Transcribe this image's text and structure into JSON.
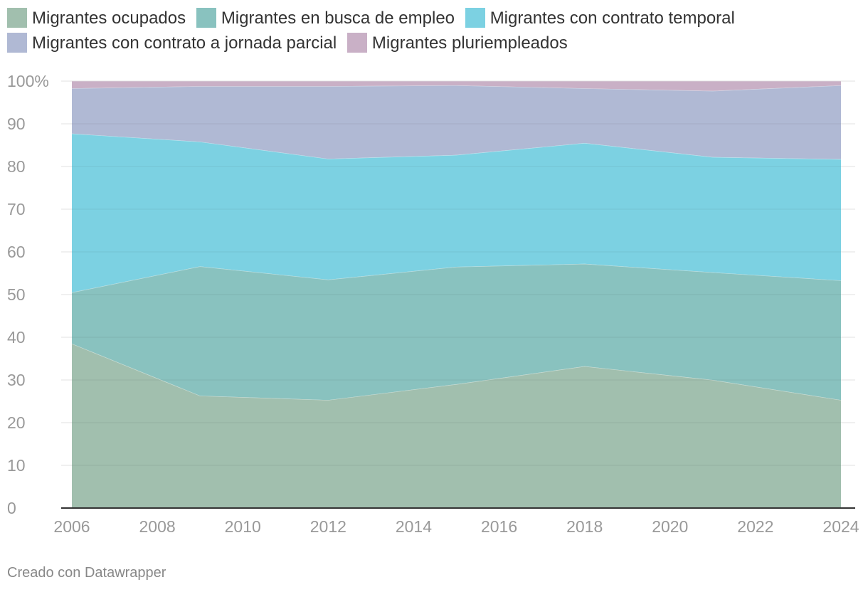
{
  "chart_data": {
    "type": "area",
    "stacked": true,
    "title": "",
    "xlabel": "",
    "ylabel": "",
    "x": [
      2006,
      2009,
      2012,
      2015,
      2018,
      2021,
      2024
    ],
    "series": [
      {
        "name": "Migrantes ocupados",
        "color": "#a1bfae",
        "values": [
          38.5,
          26.3,
          25.3,
          29.0,
          33.2,
          30.0,
          25.3
        ]
      },
      {
        "name": "Migrantes en busca de empleo",
        "color": "#89c2bf",
        "values": [
          12.0,
          30.3,
          28.2,
          27.5,
          24.0,
          25.2,
          28.0
        ]
      },
      {
        "name": "Migrantes con contrato temporal",
        "color": "#7cd1e2",
        "values": [
          37.2,
          29.2,
          28.3,
          26.2,
          28.3,
          27.0,
          28.4
        ]
      },
      {
        "name": "Migrantes con contrato a jornada parcial",
        "color": "#b0b9d4",
        "values": [
          10.6,
          13.0,
          17.0,
          16.3,
          12.8,
          15.5,
          17.3
        ]
      },
      {
        "name": "Migrantes pluriempleados",
        "color": "#c9b0c6",
        "values": [
          1.7,
          1.2,
          1.2,
          1.0,
          1.7,
          2.3,
          1.0
        ]
      }
    ],
    "xlim": [
      2006,
      2024
    ],
    "ylim": [
      0,
      100
    ],
    "x_ticks": [
      2006,
      2008,
      2010,
      2012,
      2014,
      2016,
      2018,
      2020,
      2022,
      2024
    ],
    "y_ticks": [
      0,
      10,
      20,
      30,
      40,
      50,
      60,
      70,
      80,
      90,
      100
    ],
    "y_tick_labels": [
      "0",
      "10",
      "20",
      "30",
      "40",
      "50",
      "60",
      "70",
      "80",
      "90",
      "100%"
    ],
    "grid": true,
    "legend_position": "top"
  },
  "footer": "Creado con Datawrapper"
}
